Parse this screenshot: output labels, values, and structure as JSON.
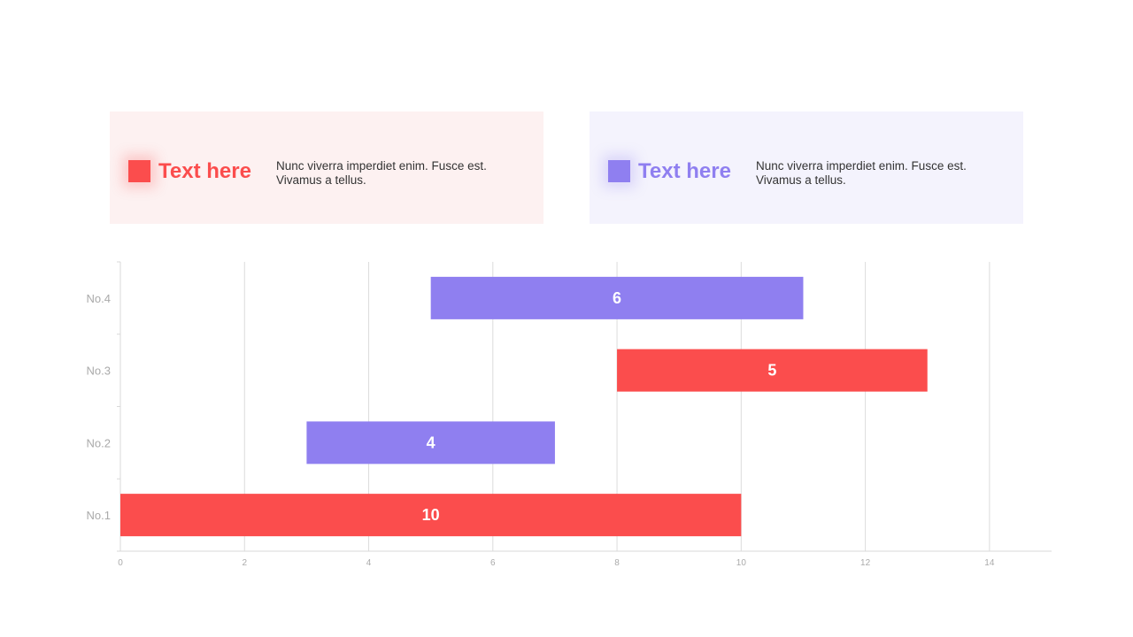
{
  "cards": [
    {
      "title": "Text here",
      "description": "Nunc viverra imperdiet enim. Fusce est. Vivamus a tellus.",
      "color": "#fb4d4d",
      "background": "#fdf1f1"
    },
    {
      "title": "Text here",
      "description": "Nunc viverra imperdiet enim. Fusce est. Vivamus a tellus.",
      "color": "#8f7ff0",
      "background": "#f4f3fd"
    }
  ],
  "chart_data": {
    "type": "bar",
    "orientation": "horizontal",
    "stacked_offset": true,
    "categories": [
      "No.1",
      "No.2",
      "No.3",
      "No.4"
    ],
    "start": [
      0,
      3,
      8,
      5
    ],
    "values": [
      10,
      4,
      5,
      6
    ],
    "colors": [
      "#fb4d4d",
      "#8f7ff0",
      "#fb4d4d",
      "#8f7ff0"
    ],
    "xlim": [
      0,
      15
    ],
    "xticks": [
      0,
      2,
      4,
      6,
      8,
      10,
      12,
      14
    ],
    "grid": true,
    "legend": "none"
  }
}
